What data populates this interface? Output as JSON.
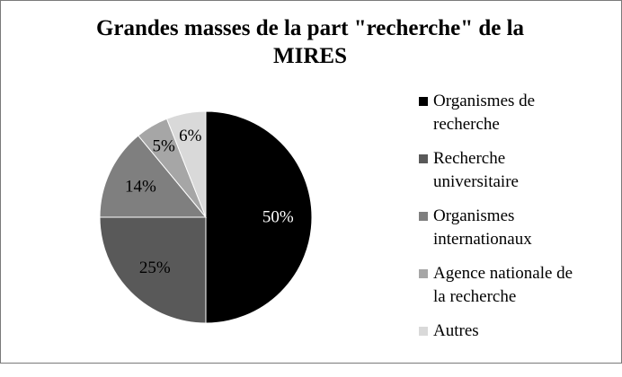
{
  "chart_data": {
    "type": "pie",
    "title": "Grandes masses de la part \"recherche\" de la MIRES",
    "title_lines": [
      "Grandes masses de la part \"recherche\" de la",
      "MIRES"
    ],
    "slices": [
      {
        "label": "Organismes de recherche",
        "legend_lines": [
          "Organismes de",
          "recherche"
        ],
        "value": 50,
        "display": "50%",
        "color": "#000000",
        "label_color": "#ffffff"
      },
      {
        "label": "Recherche universitaire",
        "legend_lines": [
          "Recherche",
          "universitaire"
        ],
        "value": 25,
        "display": "25%",
        "color": "#595959",
        "label_color": "#000000"
      },
      {
        "label": "Organismes internationaux",
        "legend_lines": [
          "Organismes",
          "internationaux"
        ],
        "value": 14,
        "display": "14%",
        "color": "#7f7f7f",
        "label_color": "#000000"
      },
      {
        "label": "Agence nationale de la recherche",
        "legend_lines": [
          "Agence nationale de",
          "la recherche"
        ],
        "value": 5,
        "display": "5%",
        "color": "#a6a6a6",
        "label_color": "#000000"
      },
      {
        "label": "Autres",
        "legend_lines": [
          "Autres"
        ],
        "value": 6,
        "display": "6%",
        "color": "#d9d9d9",
        "label_color": "#000000"
      }
    ],
    "legend_position": "right"
  }
}
